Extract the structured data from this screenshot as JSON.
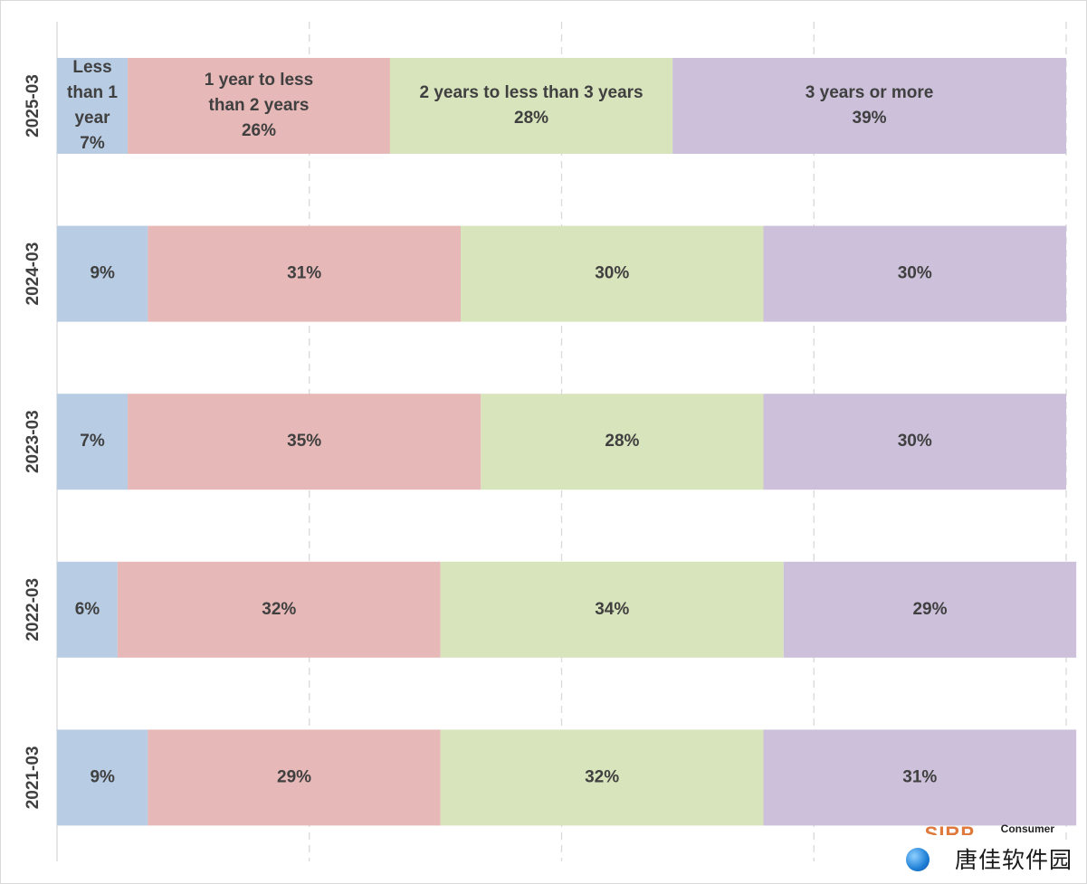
{
  "chart_data": {
    "type": "bar",
    "orientation": "horizontal",
    "stacked": true,
    "percent_stacked": true,
    "categories": [
      "2025-03",
      "2024-03",
      "2023-03",
      "2022-03",
      "2021-03"
    ],
    "series": [
      {
        "name": "Less than 1 year",
        "color": "#b8cce4",
        "values": [
          7,
          9,
          7,
          6,
          9
        ]
      },
      {
        "name": "1 year to less than 2 years",
        "color": "#e6b8b7",
        "values": [
          26,
          31,
          35,
          32,
          29
        ]
      },
      {
        "name": "2 years to less than 3 years",
        "color": "#d8e4bc",
        "values": [
          28,
          30,
          28,
          34,
          32
        ]
      },
      {
        "name": "3 years or more",
        "color": "#ccc0da",
        "values": [
          39,
          30,
          30,
          29,
          31
        ]
      }
    ],
    "xlim": [
      0,
      100
    ],
    "grid": "vertical-dashed",
    "legend": "none",
    "title": "",
    "xlabel": "",
    "ylabel": "",
    "series_name_shown_in_category": "2025-03"
  },
  "watermark": {
    "small_text": "Consumer",
    "logo_text": "SIRP",
    "site_text": "唐佳软件园"
  }
}
